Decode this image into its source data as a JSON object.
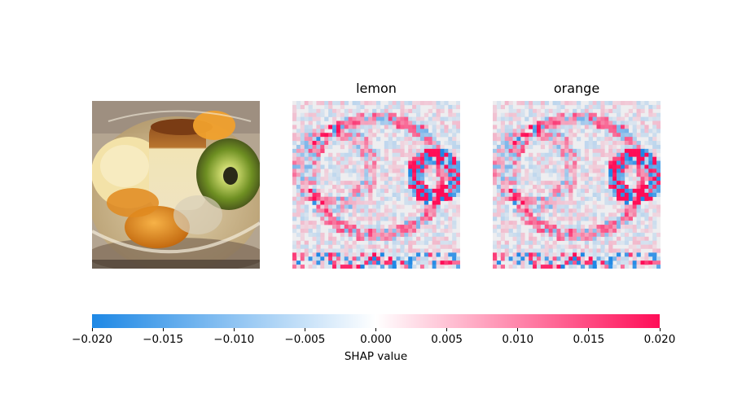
{
  "chart_data": {
    "type": "heatmap",
    "panels": [
      {
        "title": "",
        "content": "original dessert photo (pudding, ice cream, kiwi, mandarin orange in glass bowl)"
      },
      {
        "title": "lemon",
        "content": "SHAP value heatmap"
      },
      {
        "title": "orange",
        "content": "SHAP value heatmap"
      }
    ],
    "colorbar": {
      "label": "SHAP value",
      "vmin": -0.02,
      "vmax": 0.02,
      "ticks": [
        "-0.020",
        "-0.015",
        "-0.010",
        "-0.005",
        "0.000",
        "0.005",
        "0.010",
        "0.015",
        "0.020"
      ],
      "tick_values": [
        -0.02,
        -0.015,
        -0.01,
        -0.005,
        0.0,
        0.005,
        0.01,
        0.015,
        0.02
      ],
      "color_negative": "#1e88e5",
      "color_zero": "#ffffff",
      "color_positive": "#ff0d57"
    }
  }
}
